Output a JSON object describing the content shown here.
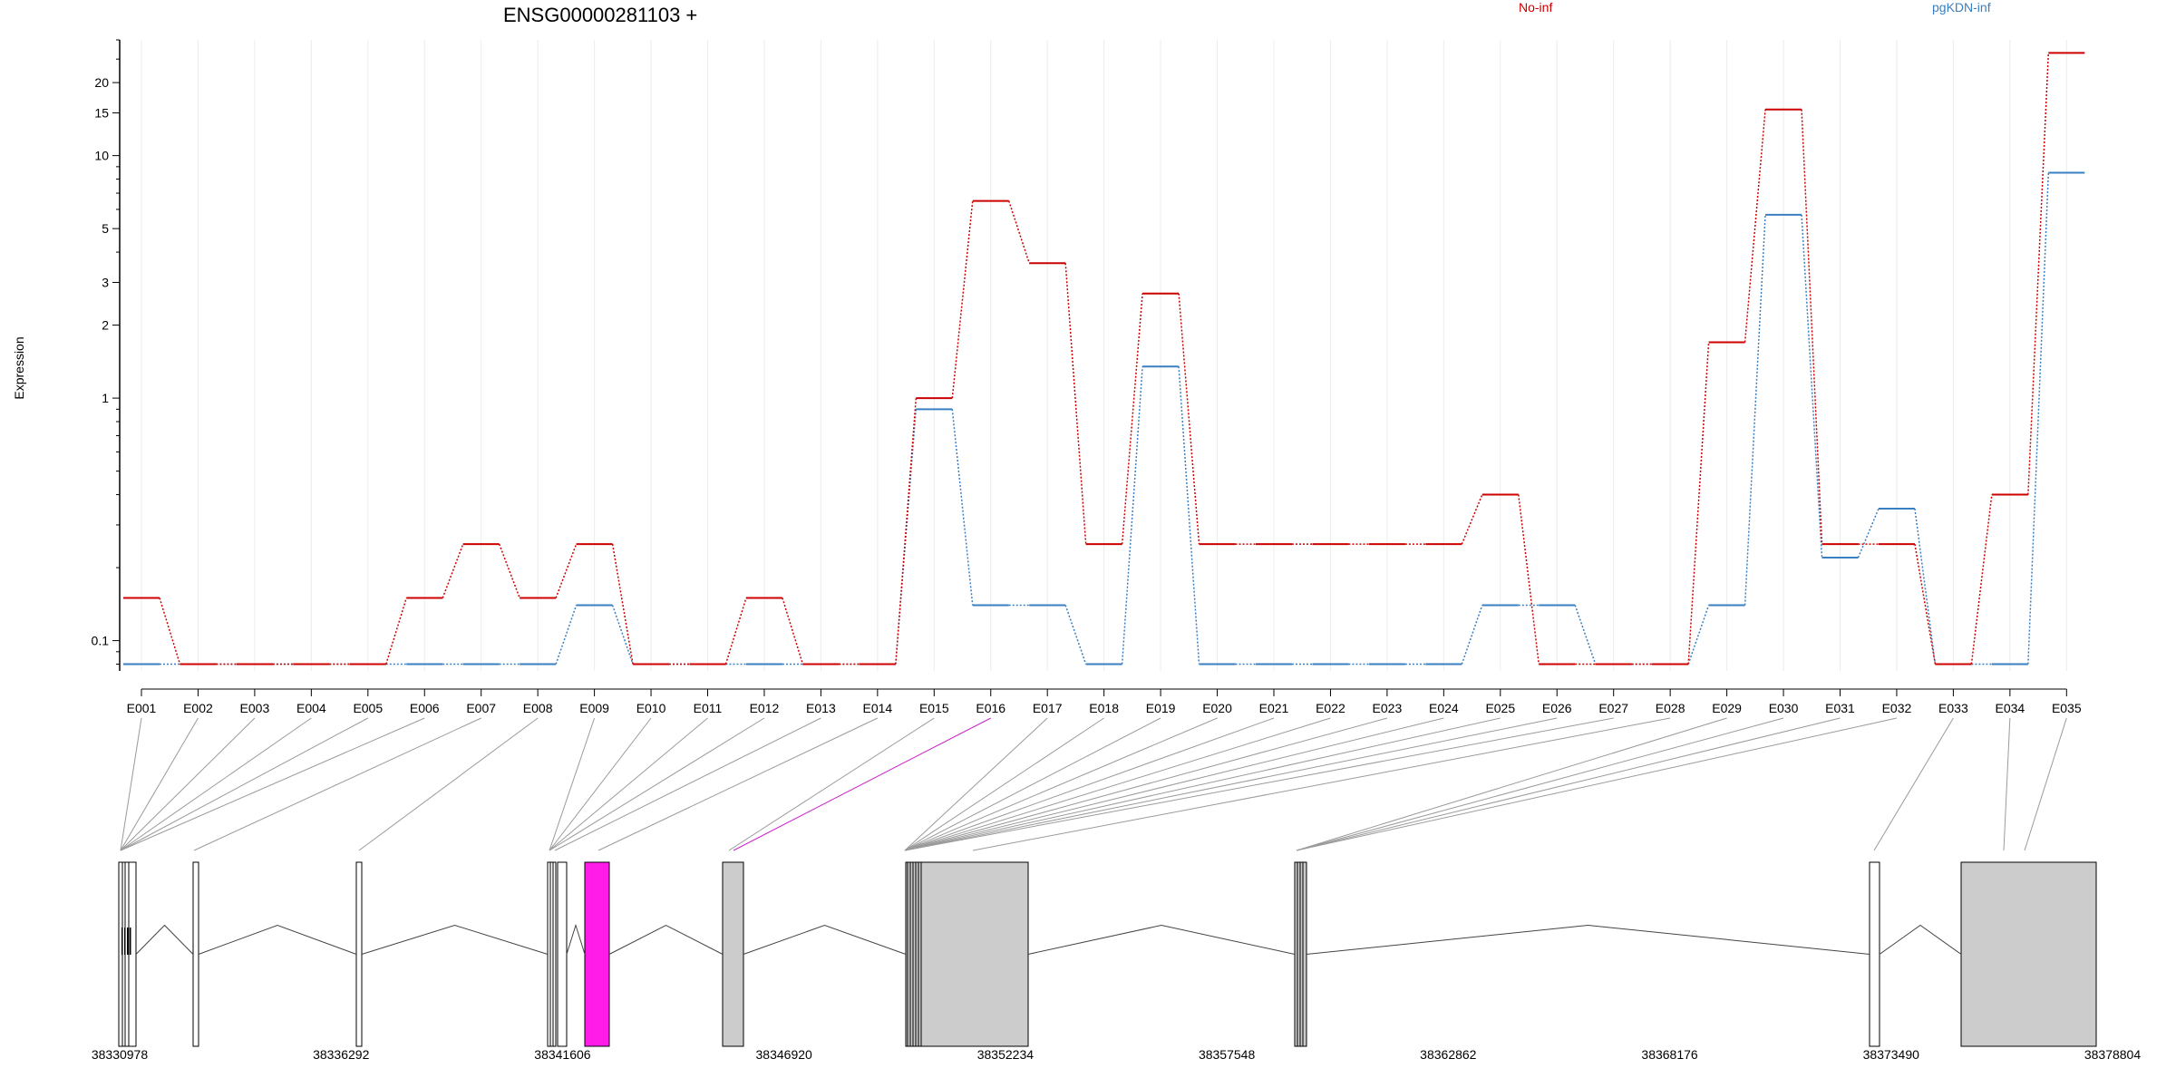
{
  "chart_data": {
    "type": "line",
    "title": "ENSG00000281103 +",
    "ylabel": "Expression",
    "xlabel": "",
    "y_scale": "log",
    "ylim": [
      0.075,
      30
    ],
    "y_ticks": [
      0.1,
      1,
      2,
      3,
      5,
      10,
      15,
      20
    ],
    "grid": "vertical lines at each exon",
    "legend": "top",
    "categories": [
      "E001",
      "E002",
      "E003",
      "E004",
      "E005",
      "E006",
      "E007",
      "E008",
      "E009",
      "E010",
      "E011",
      "E012",
      "E013",
      "E014",
      "E015",
      "E016",
      "E017",
      "E018",
      "E019",
      "E020",
      "E021",
      "E022",
      "E023",
      "E024",
      "E025",
      "E026",
      "E027",
      "E028",
      "E029",
      "E030",
      "E031",
      "E032",
      "E033",
      "E034",
      "E035"
    ],
    "highlighted_exon": "E016",
    "series": [
      {
        "name": "No-inf",
        "color": "#cc0000",
        "values": [
          0.15,
          0.08,
          0.08,
          0.08,
          0.08,
          0.15,
          0.25,
          0.15,
          0.25,
          0.08,
          0.08,
          0.15,
          0.08,
          0.08,
          1.0,
          6.5,
          3.6,
          0.25,
          2.7,
          0.25,
          0.25,
          0.25,
          0.25,
          0.25,
          0.4,
          0.08,
          0.08,
          0.08,
          1.7,
          15.5,
          0.25,
          0.25,
          0.08,
          0.4,
          26.5
        ]
      },
      {
        "name": "pgKDN-inf",
        "color": "#3a7fc1",
        "values": [
          0.08,
          0.08,
          0.08,
          0.08,
          0.08,
          0.08,
          0.08,
          0.08,
          0.14,
          0.08,
          0.08,
          0.08,
          0.08,
          0.08,
          0.9,
          0.14,
          0.14,
          0.08,
          1.35,
          0.08,
          0.08,
          0.08,
          0.08,
          0.08,
          0.14,
          0.14,
          0.08,
          0.08,
          0.14,
          5.7,
          0.22,
          0.35,
          0.08,
          0.08,
          8.5
        ]
      }
    ],
    "genomic_ticks": [
      "38330978",
      "38336292",
      "38341606",
      "38346920",
      "38352234",
      "38357548",
      "38362862",
      "38368176",
      "38373490",
      "38378804"
    ],
    "gene_model": {
      "fill_color": "#cccccc",
      "highlight_color": "#ff1ce8",
      "outline_color": "#000000"
    }
  }
}
